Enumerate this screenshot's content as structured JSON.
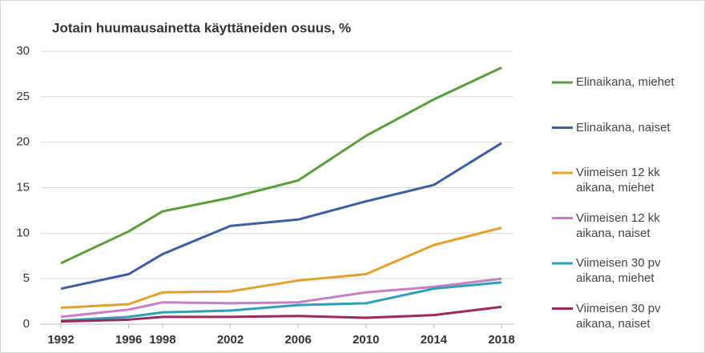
{
  "chart_data": {
    "type": "line",
    "title": "Jotain huumausainetta käyttäneiden osuus, %",
    "x": [
      1992,
      1996,
      1998,
      2002,
      2006,
      2010,
      2014,
      2018
    ],
    "xlim": [
      1992,
      2018
    ],
    "xticks": [
      1992,
      1996,
      1998,
      2002,
      2006,
      2010,
      2014,
      2018
    ],
    "ylim": [
      0,
      30
    ],
    "yticks": [
      0,
      5,
      10,
      15,
      20,
      25,
      30
    ],
    "grid": true,
    "legend": "right",
    "series": [
      {
        "name": "Elinaikana, miehet",
        "color": "#5a9e3a",
        "values": [
          6.7,
          10.2,
          12.4,
          13.9,
          15.8,
          20.7,
          24.7,
          28.2
        ]
      },
      {
        "name": "Elinaikana, naiset",
        "color": "#3c5fa3",
        "values": [
          3.9,
          5.5,
          7.7,
          10.8,
          11.5,
          13.5,
          15.3,
          19.9
        ]
      },
      {
        "name": "Viimeisen 12 kk aikana, miehet",
        "color": "#e3a02c",
        "values": [
          1.8,
          2.2,
          3.5,
          3.6,
          4.8,
          5.5,
          8.7,
          10.6
        ]
      },
      {
        "name": "Viimeisen 12 kk aikana, naiset",
        "color": "#c77fc4",
        "values": [
          0.8,
          1.6,
          2.4,
          2.3,
          2.4,
          3.5,
          4.1,
          5.0
        ]
      },
      {
        "name": "Viimeisen 30 pv aikana, miehet",
        "color": "#2ea0b8",
        "values": [
          0.4,
          0.8,
          1.3,
          1.5,
          2.1,
          2.3,
          3.9,
          4.6
        ]
      },
      {
        "name": "Viimeisen 30 pv aikana, naiset",
        "color": "#9c2a5a",
        "values": [
          0.3,
          0.5,
          0.8,
          0.8,
          0.9,
          0.7,
          1.0,
          1.9
        ]
      }
    ]
  }
}
